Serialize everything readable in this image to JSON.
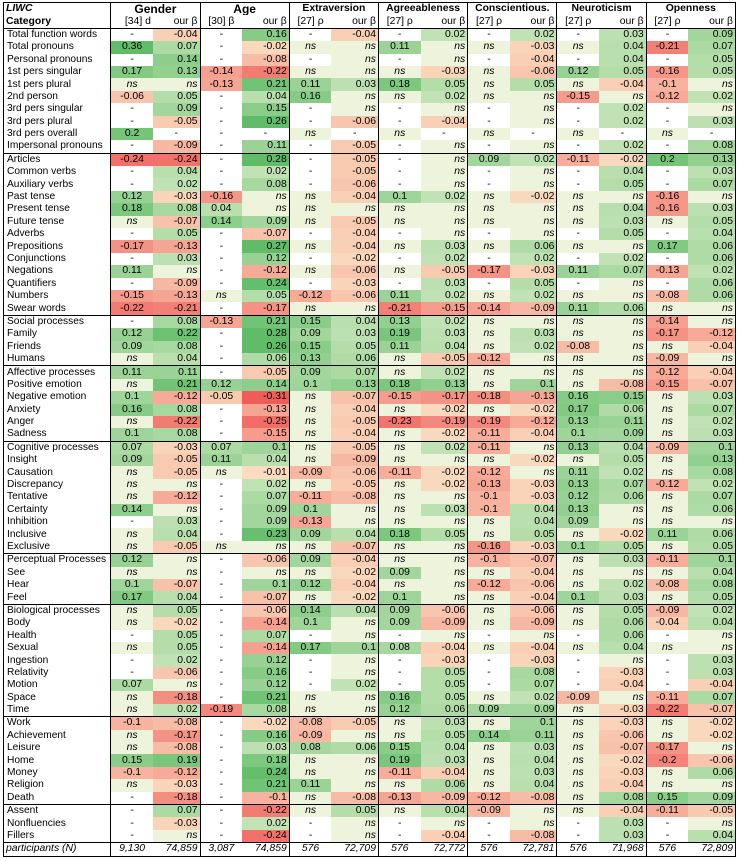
{
  "corner": {
    "top": "LIWC",
    "bottom": "Category"
  },
  "traits": [
    "Gender",
    "Age",
    "Extraversion",
    "Agreeableness",
    "Conscientious.",
    "Neuroticism",
    "Openness"
  ],
  "subheaders": [
    [
      "[34] d",
      "our β"
    ],
    [
      "[30] β",
      "our β"
    ],
    [
      "[27] ρ",
      "our β"
    ],
    [
      "[27] ρ",
      "our β"
    ],
    [
      "[27] ρ",
      "our β"
    ],
    [
      "[27] ρ",
      "our β"
    ],
    [
      "[27] ρ",
      "our β"
    ]
  ],
  "groups": [
    [
      [
        "Total function words",
        "-",
        "-0.04",
        "-",
        "0.16",
        "-",
        "-0.04",
        "-",
        "0.02",
        "-",
        "0.02",
        "-",
        "0.03",
        "-",
        "0.09"
      ],
      [
        "Total pronouns",
        "0.36",
        "0.07",
        "-",
        "-0.02",
        "ns",
        "ns",
        "0.11",
        "ns",
        "ns",
        "-0.03",
        "ns",
        "0.04",
        "-0.21",
        "0.07"
      ],
      [
        "Personal pronouns",
        "-",
        "0.14",
        "-",
        "-0.08",
        "-",
        "ns",
        "-",
        "ns",
        "-",
        "-0.04",
        "-",
        "0.04",
        "-",
        "0.05"
      ],
      [
        "1st pers singular",
        "0.17",
        "0.13",
        "-0.14",
        "-0.22",
        "ns",
        "ns",
        "ns",
        "-0.03",
        "ns",
        "-0.06",
        "0.12",
        "0.05",
        "-0.16",
        "0.05"
      ],
      [
        "1st pers plural",
        "ns",
        "ns",
        "-0.13",
        "0.21",
        "0.11",
        "0.03",
        "0.18",
        "0.05",
        "ns",
        "0.05",
        "ns",
        "-0.04",
        "-0.1",
        "ns"
      ],
      [
        "2nd person",
        "-0.06",
        "0.05",
        "-",
        "0.04",
        "0.16",
        "ns",
        "ns",
        "0.02",
        "ns",
        "ns",
        "-0.15",
        "ns",
        "-0.12",
        "0.02"
      ],
      [
        "3rd pers singular",
        "-",
        "0.09",
        "-",
        "0.15",
        "-",
        "ns",
        "-",
        "ns",
        "-",
        "ns",
        "-",
        "0.02",
        "-",
        "ns"
      ],
      [
        "3rd pers plural",
        "-",
        "-0.05",
        "-",
        "0.26",
        "-",
        "-0.06",
        "-",
        "-0.04",
        "-",
        "ns",
        "-",
        "0.02",
        "-",
        "0.03"
      ],
      [
        "3rd pers overall",
        "0.2",
        "-",
        "-",
        "-",
        "ns",
        "-",
        "ns",
        "-",
        "ns",
        "-",
        "ns",
        "-",
        "ns",
        "-"
      ],
      [
        "Impersonal pronouns",
        "-",
        "-0.09",
        "-",
        "0.11",
        "-",
        "-0.05",
        "-",
        "ns",
        "-",
        "ns",
        "-",
        "0.02",
        "-",
        "0.08"
      ]
    ],
    [
      [
        "Articles",
        "-0.24",
        "-0.24",
        "-",
        "0.28",
        "-",
        "-0.05",
        "-",
        "ns",
        "0.09",
        "0.02",
        "-0.11",
        "-0.02",
        "0.2",
        "0.13"
      ],
      [
        "Common verbs",
        "-",
        "0.04",
        "-",
        "0.02",
        "-",
        "-0.05",
        "-",
        "ns",
        "-",
        "ns",
        "-",
        "0.04",
        "-",
        "0.03"
      ],
      [
        "Auxiliary verbs",
        "-",
        "0.02",
        "-",
        "0.08",
        "-",
        "-0.06",
        "-",
        "ns",
        "-",
        "ns",
        "-",
        "0.05",
        "-",
        "0.07"
      ],
      [
        "Past tense",
        "0.12",
        "-0.03",
        "-0.16",
        "ns",
        "ns",
        "-0.04",
        "0.1",
        "0.02",
        "ns",
        "-0.02",
        "ns",
        "ns",
        "-0.16",
        "ns"
      ],
      [
        "Present tense",
        "0.18",
        "0.08",
        "0.04",
        "ns",
        "ns",
        "ns",
        "ns",
        "ns",
        "ns",
        "ns",
        "ns",
        "0.04",
        "-0.16",
        "0.03"
      ],
      [
        "Future tense",
        "ns",
        "-0.07",
        "0.14",
        "0.09",
        "ns",
        "-0.05",
        "ns",
        "ns",
        "ns",
        "ns",
        "ns",
        "0.03",
        "ns",
        "0.05"
      ],
      [
        "Adverbs",
        "-",
        "0.05",
        "-",
        "-0.07",
        "-",
        "-0.04",
        "-",
        "ns",
        "-",
        "ns",
        "-",
        "0.05",
        "-",
        "0.04"
      ],
      [
        "Prepositions",
        "-0.17",
        "-0.13",
        "-",
        "0.27",
        "ns",
        "-0.04",
        "ns",
        "0.03",
        "ns",
        "0.06",
        "ns",
        "ns",
        "0.17",
        "0.06"
      ],
      [
        "Conjunctions",
        "-",
        "0.03",
        "-",
        "0.12",
        "-",
        "-0.02",
        "-",
        "0.02",
        "-",
        "0.02",
        "-",
        "0.02",
        "-",
        "0.06"
      ],
      [
        "Negations",
        "0.11",
        "ns",
        "-",
        "-0.12",
        "ns",
        "-0.06",
        "ns",
        "-0.05",
        "-0.17",
        "-0.03",
        "0.11",
        "0.07",
        "-0.13",
        "0.02"
      ],
      [
        "Quantifiers",
        "-",
        "-0.09",
        "-",
        "0.24",
        "-",
        "-0.03",
        "-",
        "0.03",
        "-",
        "0.05",
        "-",
        "ns",
        "-",
        "0.06"
      ],
      [
        "Numbers",
        "-0.15",
        "-0.13",
        "ns",
        "0.05",
        "-0.12",
        "-0.06",
        "0.11",
        "0.02",
        "ns",
        "0.02",
        "ns",
        "ns",
        "-0.08",
        "0.06"
      ],
      [
        "Swear words",
        "-0.22",
        "-0.21",
        "-",
        "-0.17",
        "ns",
        "ns",
        "-0.21",
        "-0.15",
        "-0.14",
        "-0.09",
        "0.11",
        "0.06",
        "ns",
        "ns"
      ]
    ],
    [
      [
        "Social processes",
        "-",
        "0.08",
        "-0.13",
        "0.21",
        "0.15",
        "0.04",
        "0.13",
        "0.02",
        "ns",
        "ns",
        "ns",
        "ns",
        "-0.14",
        "ns"
      ],
      [
        "Family",
        "0.12",
        "0.22",
        "-",
        "0.28",
        "0.09",
        "0.03",
        "0.19",
        "0.03",
        "ns",
        "0.03",
        "ns",
        "ns",
        "-0.17",
        "-0.12"
      ],
      [
        "Friends",
        "0.09",
        "0.08",
        "-",
        "0.26",
        "0.15",
        "0.05",
        "0.11",
        "0.04",
        "ns",
        "0.02",
        "-0.08",
        "ns",
        "ns",
        "-0.04"
      ],
      [
        "Humans",
        "ns",
        "0.04",
        "-",
        "0.06",
        "0.13",
        "0.06",
        "ns",
        "-0.05",
        "-0.12",
        "ns",
        "ns",
        "ns",
        "-0.09",
        "ns"
      ]
    ],
    [
      [
        "Affective processes",
        "0.11",
        "0.11",
        "-",
        "-0.05",
        "0.09",
        "0.07",
        "ns",
        "0.02",
        "ns",
        "ns",
        "ns",
        "ns",
        "-0.12",
        "-0.04"
      ],
      [
        "Positive emotion",
        "ns",
        "0.21",
        "0.12",
        "0.14",
        "0.1",
        "0.13",
        "0.18",
        "0.13",
        "ns",
        "0.1",
        "ns",
        "-0.08",
        "-0.15",
        "-0.07"
      ],
      [
        "Negative emotion",
        "0.1",
        "-0.12",
        "-0.05",
        "-0.31",
        "ns",
        "-0.07",
        "-0.15",
        "-0.17",
        "-0.18",
        "-0.13",
        "0.16",
        "0.15",
        "ns",
        "0.03"
      ],
      [
        "Anxiety",
        "0.16",
        "0.08",
        "-",
        "-0.13",
        "ns",
        "-0.04",
        "ns",
        "-0.02",
        "ns",
        "-0.02",
        "0.17",
        "0.06",
        "ns",
        "0.07"
      ],
      [
        "Anger",
        "ns",
        "-0.22",
        "-",
        "-0.25",
        "ns",
        "-0.05",
        "-0.23",
        "-0.19",
        "-0.19",
        "-0.12",
        "0.13",
        "0.11",
        "ns",
        "0.02"
      ],
      [
        "Sadness",
        "0.1",
        "0.08",
        "-",
        "-0.15",
        "ns",
        "-0.04",
        "ns",
        "-0.02",
        "-0.11",
        "-0.04",
        "0.1",
        "0.09",
        "ns",
        "0.03"
      ]
    ],
    [
      [
        "Cognitive processes",
        "0.07",
        "-0.03",
        "0.07",
        "0.1",
        "ns",
        "-0.05",
        "ns",
        "0.02",
        "-0.11",
        "ns",
        "0.13",
        "0.04",
        "-0.09",
        "0.1"
      ],
      [
        "Insight",
        "0.09",
        "-0.05",
        "0.11",
        "0.04",
        "ns",
        "-0.09",
        "ns",
        "ns",
        "ns",
        "-0.02",
        "ns",
        "0.05",
        "ns",
        "0.13"
      ],
      [
        "Causation",
        "ns",
        "-0.05",
        "ns",
        "-0.01",
        "-0.09",
        "-0.06",
        "-0.11",
        "-0.02",
        "-0.12",
        "ns",
        "0.11",
        "0.02",
        "ns",
        "0.08"
      ],
      [
        "Discrepancy",
        "ns",
        "ns",
        "-",
        "0.02",
        "ns",
        "-0.05",
        "ns",
        "-0.02",
        "-0.13",
        "-0.03",
        "0.13",
        "0.07",
        "-0.12",
        "0.02"
      ],
      [
        "Tentative",
        "ns",
        "-0.12",
        "-",
        "0.07",
        "-0.11",
        "-0.08",
        "ns",
        "ns",
        "-0.1",
        "-0.03",
        "0.12",
        "0.06",
        "ns",
        "0.07"
      ],
      [
        "Certainty",
        "0.14",
        "ns",
        "-",
        "0.09",
        "0.1",
        "ns",
        "ns",
        "0.03",
        "-0.1",
        "0.04",
        "0.13",
        "ns",
        "ns",
        "0.06"
      ],
      [
        "Inhibition",
        "-",
        "0.03",
        "-",
        "0.09",
        "-0.13",
        "ns",
        "ns",
        "ns",
        "ns",
        "0.04",
        "0.09",
        "ns",
        "ns",
        "ns"
      ],
      [
        "Inclusive",
        "ns",
        "0.04",
        "-",
        "0.23",
        "0.09",
        "0.04",
        "0.18",
        "0.05",
        "ns",
        "0.05",
        "ns",
        "-0.02",
        "0.11",
        "0.06"
      ],
      [
        "Exclusive",
        "ns",
        "-0.05",
        "ns",
        "ns",
        "ns",
        "-0.07",
        "ns",
        "ns",
        "-0.16",
        "-0.03",
        "0.1",
        "0.05",
        "ns",
        "0.05"
      ]
    ],
    [
      [
        "Perceptual Processes",
        "0.12",
        "ns",
        "-",
        "-0.06",
        "0.09",
        "-0.04",
        "ns",
        "ns",
        "-0.1",
        "-0.07",
        "ns",
        "0.03",
        "-0.11",
        "0.1"
      ],
      [
        "See",
        "ns",
        "ns",
        "-",
        "ns",
        "ns",
        "-0.02",
        "0.09",
        "ns",
        "ns",
        "-0.04",
        "ns",
        "ns",
        "ns",
        "0.04"
      ],
      [
        "Hear",
        "0.1",
        "-0.07",
        "-",
        "0.1",
        "0.12",
        "-0.04",
        "ns",
        "ns",
        "-0.12",
        "-0.06",
        "ns",
        "0.02",
        "-0.08",
        "0.08"
      ],
      [
        "Feel",
        "0.17",
        "0.04",
        "-",
        "-0.07",
        "ns",
        "-0.02",
        "0.1",
        "ns",
        "ns",
        "-0.04",
        "0.1",
        "0.03",
        "ns",
        "0.05"
      ]
    ],
    [
      [
        "Biological processes",
        "ns",
        "0.05",
        "-",
        "-0.06",
        "0.14",
        "0.04",
        "0.09",
        "-0.06",
        "ns",
        "-0.06",
        "ns",
        "0.05",
        "-0.09",
        "0.02"
      ],
      [
        "Body",
        "ns",
        "-0.02",
        "-",
        "-0.14",
        "0.1",
        "ns",
        "0.09",
        "-0.09",
        "ns",
        "-0.09",
        "ns",
        "0.06",
        "-0.04",
        "0.04"
      ],
      [
        "Health",
        "-",
        "0.05",
        "-",
        "0.07",
        "-",
        "ns",
        "-",
        "ns",
        "-",
        "ns",
        "-",
        "0.06",
        "-",
        "ns"
      ],
      [
        "Sexual",
        "ns",
        "0.05",
        "-",
        "-0.14",
        "0.17",
        "0.1",
        "0.08",
        "-0.04",
        "ns",
        "-0.04",
        "ns",
        "0.04",
        "ns",
        "ns"
      ],
      [
        "Ingestion",
        "-",
        "0.02",
        "-",
        "0.12",
        "-",
        "ns",
        "-",
        "-0.03",
        "-",
        "-0.03",
        "-",
        "ns",
        "-",
        "0.03"
      ],
      [
        "Relativity",
        "-",
        "-0.06",
        "-",
        "0.16",
        "-",
        "ns",
        "-",
        "0.05",
        "-",
        "0.08",
        "-",
        "-0.03",
        "-",
        "0.03"
      ],
      [
        "Motion",
        "0.07",
        "ns",
        "-",
        "0.12",
        "-",
        "0.02",
        "-",
        "0.05",
        "-",
        "0.07",
        "-",
        "-0.04",
        "-",
        "-0.04"
      ],
      [
        "Space",
        "ns",
        "-0.18",
        "-",
        "0.21",
        "ns",
        "ns",
        "0.16",
        "0.05",
        "ns",
        "0.02",
        "-0.09",
        "ns",
        "-0.11",
        "0.07"
      ],
      [
        "Time",
        "ns",
        "0.02",
        "-0.19",
        "0.08",
        "ns",
        "ns",
        "0.12",
        "0.06",
        "0.09",
        "0.09",
        "ns",
        "-0.03",
        "-0.22",
        "-0.07"
      ]
    ],
    [
      [
        "Work",
        "-0.1",
        "-0.08",
        "-",
        "-0.02",
        "-0.08",
        "-0.05",
        "ns",
        "0.03",
        "ns",
        "0.1",
        "ns",
        "-0.03",
        "ns",
        "-0.02"
      ],
      [
        "Achievement",
        "ns",
        "-0.17",
        "-",
        "0.16",
        "-0.09",
        "ns",
        "ns",
        "0.05",
        "0.14",
        "0.11",
        "ns",
        "-0.06",
        "ns",
        "-0.02"
      ],
      [
        "Leisure",
        "ns",
        "-0.08",
        "-",
        "0.03",
        "0.08",
        "0.06",
        "0.15",
        "0.04",
        "ns",
        "0.03",
        "ns",
        "-0.07",
        "-0.17",
        "ns"
      ],
      [
        "Home",
        "0.15",
        "0.19",
        "-",
        "0.18",
        "ns",
        "ns",
        "0.19",
        "0.03",
        "ns",
        "0.04",
        "ns",
        "-0.02",
        "-0.2",
        "-0.06"
      ],
      [
        "Money",
        "-0.1",
        "-0.12",
        "-",
        "0.24",
        "ns",
        "ns",
        "-0.11",
        "-0.04",
        "ns",
        "0.03",
        "ns",
        "-0.03",
        "ns",
        "0.06"
      ],
      [
        "Religion",
        "ns",
        "-0.03",
        "-",
        "0.21",
        "0.11",
        "ns",
        "ns",
        "0.06",
        "ns",
        "0.04",
        "ns",
        "-0.04",
        "ns",
        "ns"
      ],
      [
        "Death",
        "-",
        "-0.18",
        "-",
        "-0.1",
        "ns",
        "-0.08",
        "-0.13",
        "-0.09",
        "-0.12",
        "-0.08",
        "ns",
        "0.08",
        "0.15",
        "0.09"
      ]
    ],
    [
      [
        "Assent",
        "-",
        "0.07",
        "-",
        "-0.22",
        "ns",
        "0.05",
        "ns",
        "0.04",
        "-0.09",
        "ns",
        "ns",
        "-0.04",
        "-0.11",
        "-0.05"
      ],
      [
        "Nonfluencies",
        "-",
        "-0.03",
        "-",
        "0.02",
        "-",
        "ns",
        "-",
        "ns",
        "-",
        "ns",
        "-",
        "0.03",
        "-",
        "ns"
      ],
      [
        "Fillers",
        "-",
        "ns",
        "-",
        "-0.24",
        "-",
        "ns",
        "-",
        "-0.04",
        "-",
        "-0.08",
        "-",
        "0.03",
        "-",
        "0.04"
      ]
    ]
  ],
  "footer": [
    "participants (N)",
    "9,130",
    "74,859",
    "3,087",
    "74,859",
    "576",
    "72,709",
    "576",
    "72,772",
    "576",
    "72,781",
    "576",
    "71,968",
    "576",
    "72,809"
  ]
}
